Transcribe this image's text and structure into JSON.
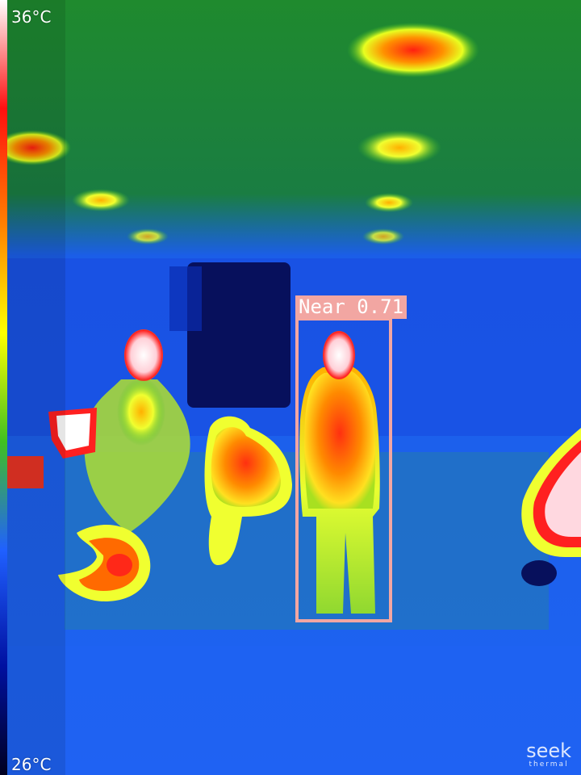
{
  "scale": {
    "max_label": "36°C",
    "min_label": "26°C",
    "palette": [
      "#ffffff",
      "#ff1010",
      "#ff8000",
      "#ffff00",
      "#40c020",
      "#2060ff",
      "#0010a0",
      "#000020"
    ]
  },
  "detection": {
    "label": "Near 0.71",
    "color": "#f2a6a2"
  },
  "logo": {
    "main": "seek",
    "sub": "thermal"
  }
}
